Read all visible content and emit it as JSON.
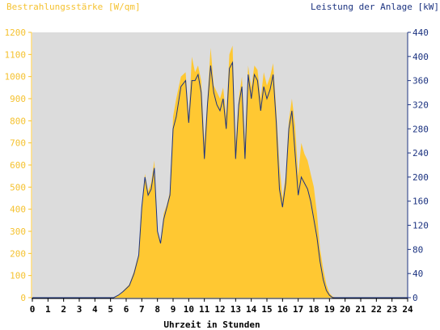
{
  "chart_data": {
    "type": "area",
    "title_left": "Bestrahlungsstärke [W/qm]",
    "title_right": "Leistung der Anlage [kW]",
    "xlabel": "Uhrzeit in Stunden",
    "x_ticks": [
      "0",
      "1",
      "2",
      "3",
      "4",
      "5",
      "6",
      "7",
      "8",
      "9",
      "10",
      "11",
      "12",
      "13",
      "14",
      "15",
      "16",
      "17",
      "18",
      "19",
      "20",
      "21",
      "22",
      "23",
      "24"
    ],
    "xlim": [
      0,
      24
    ],
    "y_left": {
      "lim": [
        0,
        1200
      ],
      "ticks": [
        "0",
        "100",
        "200",
        "300",
        "400",
        "500",
        "600",
        "700",
        "800",
        "900",
        "1000",
        "1100",
        "1200"
      ],
      "color": "#f5c230"
    },
    "y_right": {
      "lim": [
        0,
        440
      ],
      "ticks": [
        "0",
        "40",
        "80",
        "120",
        "160",
        "200",
        "240",
        "280",
        "320",
        "360",
        "400",
        "440"
      ],
      "color": "#1c3380"
    },
    "grid": false,
    "plot_background": "#dcdcdc",
    "series": [
      {
        "axis": "left",
        "style": "filled-area",
        "color": "#ffc832",
        "x": [
          0,
          5.2,
          5.5,
          5.8,
          6.2,
          6.5,
          6.8,
          7.0,
          7.2,
          7.4,
          7.6,
          7.8,
          8.0,
          8.2,
          8.4,
          8.6,
          8.8,
          9.0,
          9.2,
          9.5,
          9.8,
          10.0,
          10.2,
          10.4,
          10.6,
          10.8,
          11.0,
          11.2,
          11.4,
          11.6,
          11.8,
          12.0,
          12.2,
          12.4,
          12.6,
          12.8,
          13.0,
          13.2,
          13.4,
          13.6,
          13.8,
          14.0,
          14.2,
          14.4,
          14.6,
          14.8,
          15.0,
          15.2,
          15.4,
          15.6,
          15.8,
          16.0,
          16.2,
          16.4,
          16.6,
          16.8,
          17.0,
          17.2,
          17.4,
          17.6,
          17.8,
          18.0,
          18.2,
          18.4,
          18.6,
          18.8,
          19.0,
          19.2,
          19.4,
          19.6,
          19.8,
          20.0,
          20.2,
          24
        ],
        "values": [
          0,
          0,
          10,
          30,
          60,
          120,
          200,
          400,
          560,
          480,
          520,
          620,
          300,
          250,
          380,
          420,
          480,
          820,
          900,
          1000,
          1020,
          820,
          1090,
          1020,
          1050,
          980,
          700,
          900,
          1130,
          960,
          930,
          900,
          950,
          820,
          1100,
          1140,
          700,
          900,
          1000,
          700,
          1050,
          950,
          1050,
          1030,
          900,
          1020,
          960,
          1000,
          1060,
          850,
          600,
          450,
          550,
          800,
          900,
          780,
          550,
          700,
          650,
          620,
          560,
          500,
          380,
          220,
          130,
          60,
          20,
          5,
          0,
          0,
          0,
          0,
          0,
          0
        ]
      },
      {
        "axis": "right",
        "style": "line",
        "color": "#1c3380",
        "x": [
          0,
          5.2,
          5.5,
          5.8,
          6.2,
          6.5,
          6.8,
          7.0,
          7.2,
          7.4,
          7.6,
          7.8,
          8.0,
          8.2,
          8.4,
          8.6,
          8.8,
          9.0,
          9.2,
          9.5,
          9.8,
          10.0,
          10.2,
          10.4,
          10.6,
          10.8,
          11.0,
          11.2,
          11.4,
          11.6,
          11.8,
          12.0,
          12.2,
          12.4,
          12.6,
          12.8,
          13.0,
          13.2,
          13.4,
          13.6,
          13.8,
          14.0,
          14.2,
          14.4,
          14.6,
          14.8,
          15.0,
          15.2,
          15.4,
          15.6,
          15.8,
          16.0,
          16.2,
          16.4,
          16.6,
          16.8,
          17.0,
          17.2,
          17.4,
          17.6,
          17.8,
          18.0,
          18.2,
          18.4,
          18.6,
          18.8,
          19.0,
          19.2,
          19.4,
          19.6,
          19.8,
          20.0,
          20.2,
          24
        ],
        "values": [
          0,
          0,
          4,
          10,
          20,
          40,
          70,
          150,
          200,
          170,
          180,
          215,
          110,
          90,
          130,
          150,
          170,
          280,
          300,
          350,
          360,
          290,
          360,
          360,
          370,
          340,
          230,
          320,
          385,
          340,
          320,
          310,
          330,
          280,
          380,
          390,
          230,
          320,
          350,
          230,
          370,
          330,
          370,
          360,
          310,
          350,
          330,
          345,
          370,
          290,
          180,
          150,
          190,
          280,
          310,
          240,
          170,
          200,
          190,
          180,
          160,
          130,
          100,
          60,
          30,
          12,
          4,
          0,
          0,
          0,
          0,
          0,
          0,
          0
        ]
      }
    ]
  }
}
